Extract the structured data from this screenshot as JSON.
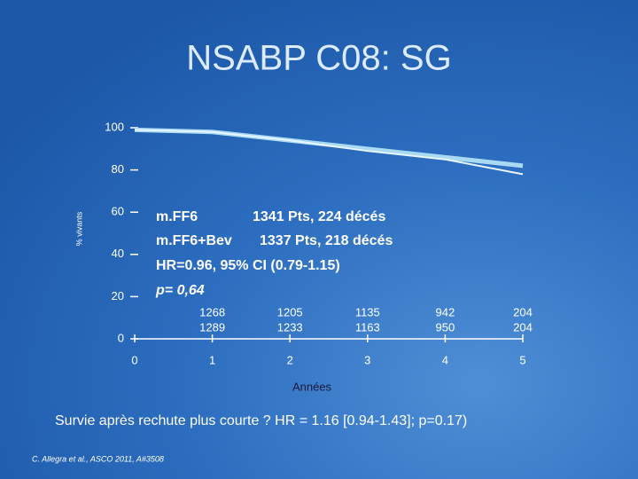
{
  "chart_data": {
    "type": "line",
    "title": "NSABP C08: SG",
    "ylabel": "% vivants",
    "xlabel": "Années",
    "x": [
      0,
      1,
      2,
      3,
      4,
      5
    ],
    "series": [
      {
        "name": "m.FF6",
        "color": "#a8daf4",
        "values": [
          99,
          98,
          94,
          90,
          86,
          82
        ]
      },
      {
        "name": "m.FF6+Bev",
        "color": "#e8f4ff",
        "values": [
          99,
          98,
          94,
          89,
          85,
          78
        ]
      }
    ],
    "xlim": [
      0,
      5
    ],
    "xticks": [
      0,
      1,
      2,
      3,
      4,
      5
    ],
    "ylim": [
      0,
      100
    ],
    "yticks": [
      0,
      20,
      40,
      60,
      80,
      100
    ],
    "annotations": [
      "m.FF6",
      "1341 Pts, 224 décés",
      "m.FF6+Bev",
      "1337 Pts, 218 décés",
      "HR=0.96, 95% CI (0.79-1.15)",
      "p= 0,64"
    ],
    "at_risk": [
      [
        1268,
        1205,
        1135,
        942,
        204
      ],
      [
        1289,
        1233,
        1163,
        950,
        204
      ]
    ],
    "footnote": "Survie après rechute plus courte ? HR = 1.16 [0.94-1.43]; p=0.17)",
    "citation": "C. Allegra et al., ASCO 2011, A#3508"
  }
}
